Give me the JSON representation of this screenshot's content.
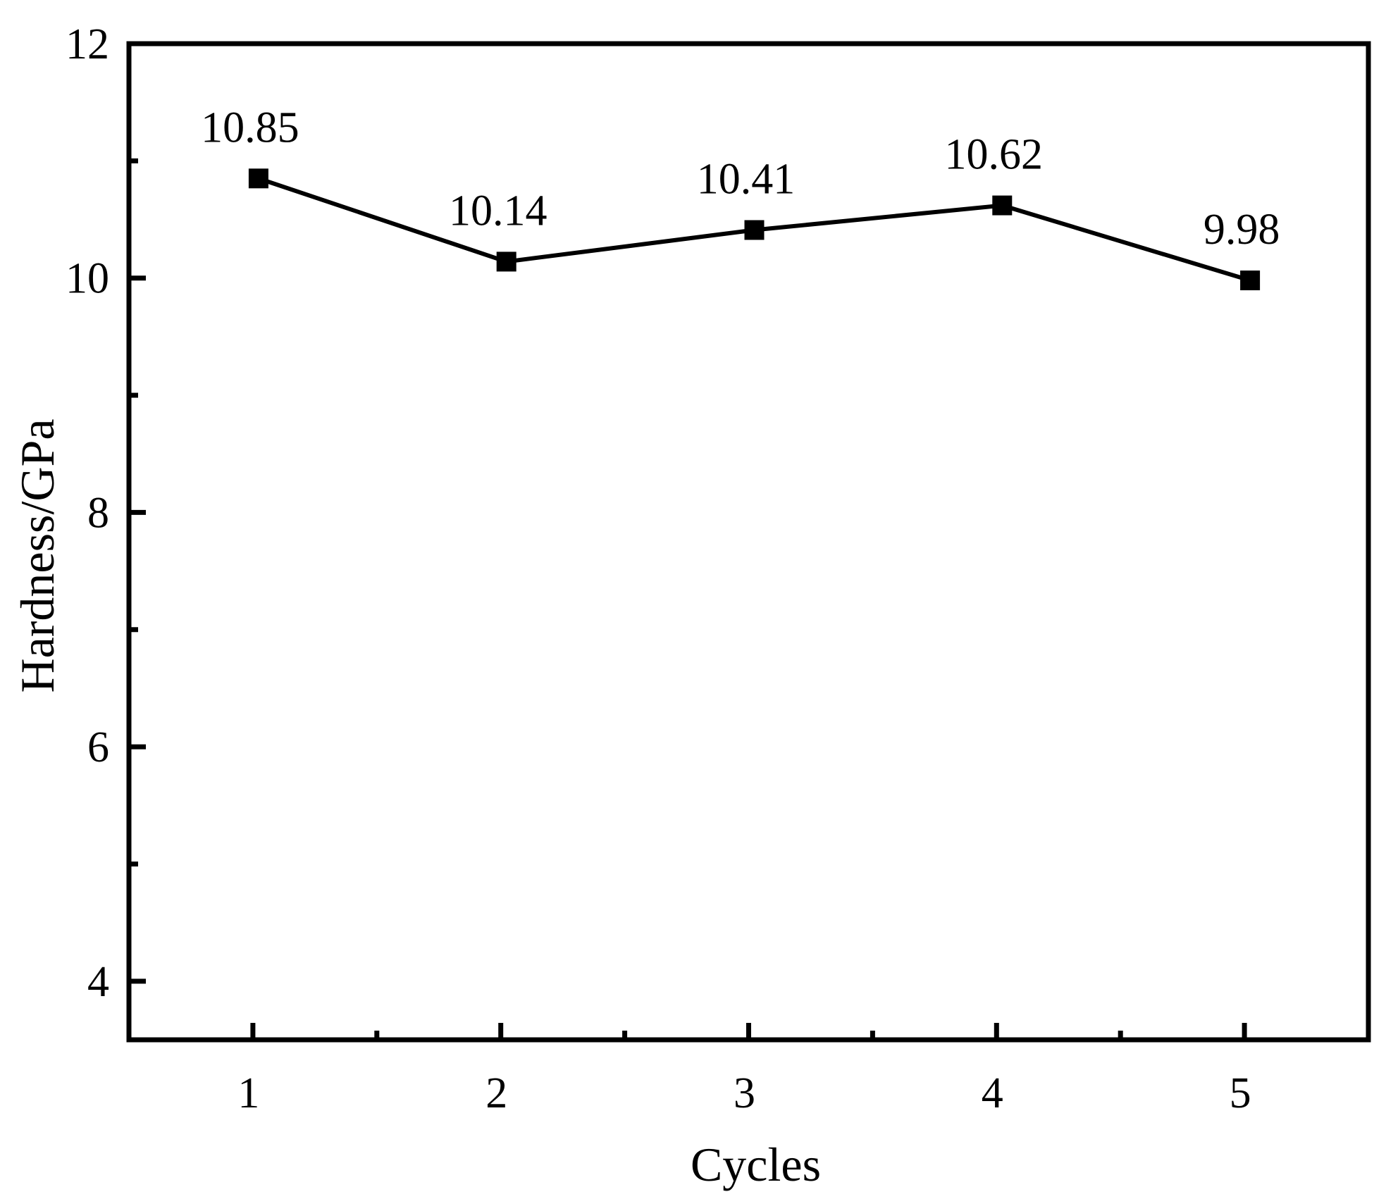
{
  "chart_data": {
    "type": "line",
    "title": "",
    "xlabel": "Cycles",
    "ylabel": "Hardness/GPa",
    "x": [
      1,
      2,
      3,
      4,
      5
    ],
    "xlim": [
      0.5,
      5.5
    ],
    "ylim": [
      3.5,
      12
    ],
    "xticks": [
      1,
      2,
      3,
      4,
      5
    ],
    "yticks": [
      4,
      6,
      8,
      10,
      12
    ],
    "grid": false,
    "legend": "none",
    "series": [
      {
        "values": [
          10.85,
          10.14,
          10.41,
          10.62,
          9.98
        ],
        "data_labels": [
          "10.85",
          "10.14",
          "10.41",
          "10.62",
          "9.98"
        ],
        "color": "#000000",
        "marker": "square"
      }
    ]
  }
}
